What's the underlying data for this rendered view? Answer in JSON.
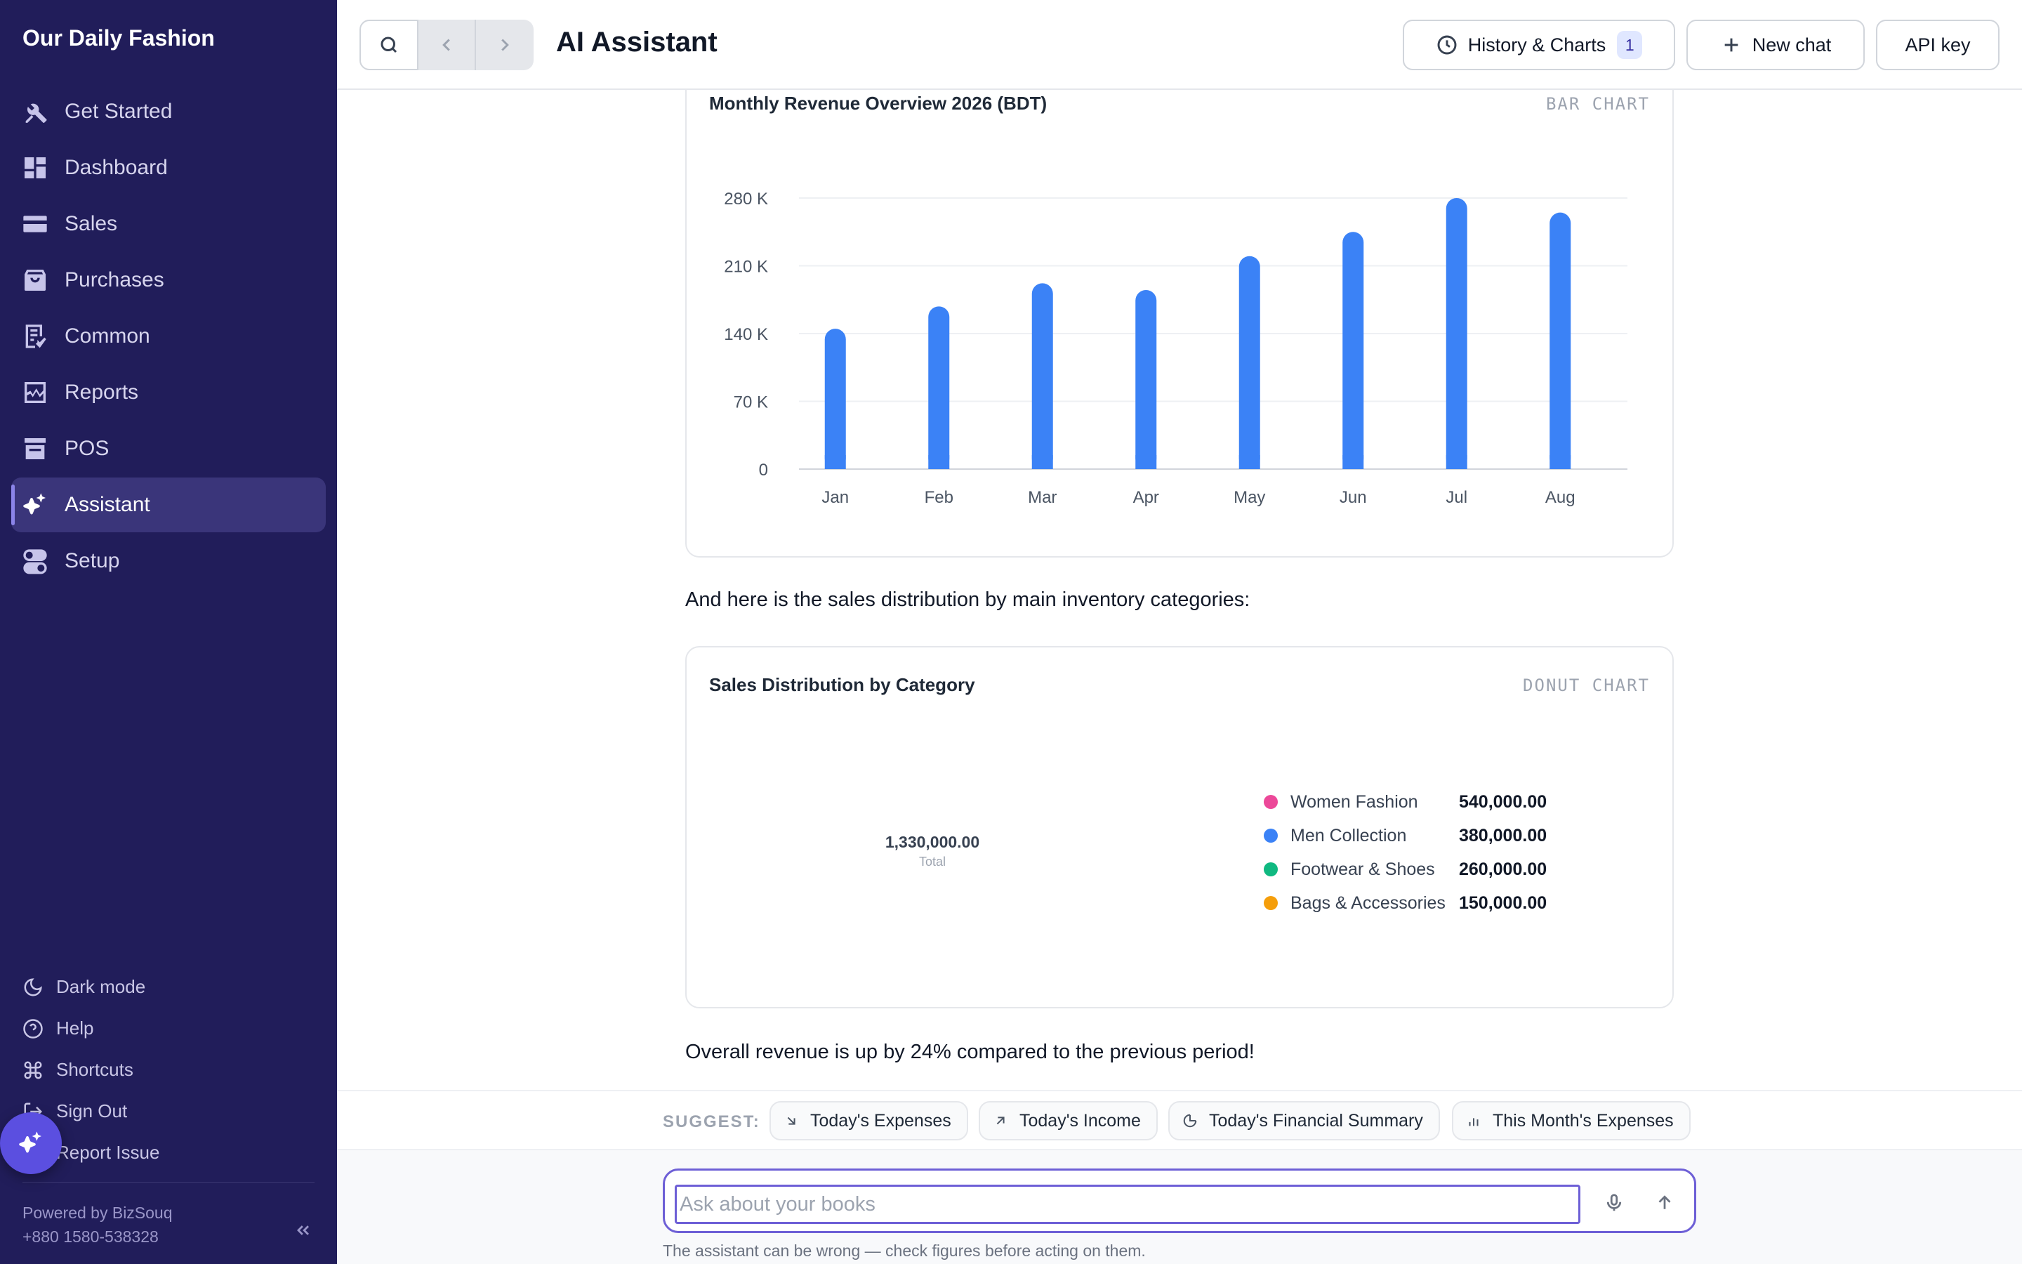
{
  "brand": "Our Daily Fashion",
  "sidebar": {
    "items": [
      {
        "label": "Get Started",
        "icon": "tools-icon"
      },
      {
        "label": "Dashboard",
        "icon": "dashboard-icon"
      },
      {
        "label": "Sales",
        "icon": "wallet-icon"
      },
      {
        "label": "Purchases",
        "icon": "bag-icon"
      },
      {
        "label": "Common",
        "icon": "document-icon"
      },
      {
        "label": "Reports",
        "icon": "chart-icon"
      },
      {
        "label": "POS",
        "icon": "store-icon"
      },
      {
        "label": "Assistant",
        "icon": "sparkle-icon",
        "active": true
      },
      {
        "label": "Setup",
        "icon": "toggle-icon"
      }
    ],
    "bottom": {
      "dark_mode": "Dark mode",
      "help": "Help",
      "shortcuts": "Shortcuts",
      "sign_out": "Sign Out",
      "report_issue": "Report Issue"
    },
    "powered_by": "Powered by BizSouq",
    "phone": "+880 1580-538328"
  },
  "header": {
    "title": "AI Assistant",
    "history_label": "History & Charts",
    "history_count": "1",
    "new_chat_label": "New chat",
    "api_key_label": "API key"
  },
  "conversation": {
    "message_between": "And here is the sales distribution by main inventory categories:",
    "message_after": "Overall revenue is up by 24% compared to the previous period!"
  },
  "chart_data": [
    {
      "type": "bar",
      "title": "Monthly Revenue Overview 2026 (BDT)",
      "type_label": "BAR CHART",
      "categories": [
        "Jan",
        "Feb",
        "Mar",
        "Apr",
        "May",
        "Jun",
        "Jul",
        "Aug"
      ],
      "values": [
        145000,
        168000,
        192000,
        185000,
        220000,
        245000,
        280000,
        265000
      ],
      "ylim": [
        0,
        280000
      ],
      "yticks": [
        0,
        70000,
        140000,
        210000,
        280000
      ],
      "ytick_labels": [
        "0",
        "70 K",
        "140 K",
        "210 K",
        "280 K"
      ],
      "grid": true,
      "color": "#3b82f6"
    },
    {
      "type": "pie",
      "title": "Sales Distribution by Category",
      "type_label": "DONUT CHART",
      "total_value": "1,330,000.00",
      "total_label": "Total",
      "categories": [
        "Women Fashion",
        "Men Collection",
        "Footwear & Shoes",
        "Bags & Accessories"
      ],
      "values": [
        540000,
        380000,
        260000,
        150000
      ],
      "value_labels": [
        "540,000.00",
        "380,000.00",
        "260,000.00",
        "150,000.00"
      ],
      "colors": [
        "#ec4899",
        "#3b82f6",
        "#10b981",
        "#f59e0b"
      ]
    }
  ],
  "suggest": {
    "label": "SUGGEST:",
    "chips": [
      {
        "label": "Today's Expenses",
        "icon": "arrow-down-right-icon"
      },
      {
        "label": "Today's Income",
        "icon": "arrow-up-right-icon"
      },
      {
        "label": "Today's Financial Summary",
        "icon": "pie-icon"
      },
      {
        "label": "This Month's Expenses",
        "icon": "bar-chart-icon"
      }
    ]
  },
  "composer": {
    "placeholder": "Ask about your books",
    "value": "",
    "disclaimer": "The assistant can be wrong — check figures before acting on them."
  }
}
